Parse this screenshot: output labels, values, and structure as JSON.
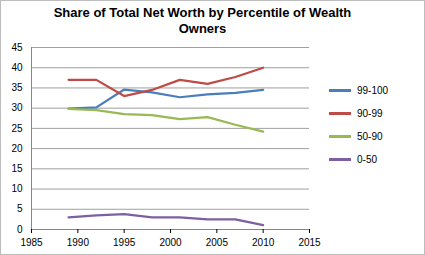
{
  "chart_data": {
    "type": "line",
    "title": "Share of Total Net Worth by Percentile of Wealth Owners",
    "x": [
      1989,
      1992,
      1995,
      1998,
      2001,
      2004,
      2007,
      2010
    ],
    "series": [
      {
        "name": "99-100",
        "color": "#4A7EBB",
        "values": [
          29.9,
          30.2,
          34.6,
          33.9,
          32.7,
          33.4,
          33.8,
          34.5
        ]
      },
      {
        "name": "90-99",
        "color": "#BE4B48",
        "values": [
          37.0,
          37.0,
          33.0,
          34.5,
          37.0,
          36.0,
          37.7,
          40.0
        ]
      },
      {
        "name": "50-90",
        "color": "#98B954",
        "values": [
          29.8,
          29.5,
          28.5,
          28.3,
          27.3,
          27.8,
          25.9,
          24.2
        ]
      },
      {
        "name": "0-50",
        "color": "#7D60A0",
        "values": [
          3.0,
          3.5,
          3.8,
          3.0,
          3.0,
          2.5,
          2.5,
          1.1
        ]
      }
    ],
    "xlim": [
      1985,
      2015
    ],
    "xticks": [
      1985,
      1990,
      1995,
      2000,
      2005,
      2010,
      2015
    ],
    "ylim": [
      0,
      45
    ],
    "yticks": [
      0,
      5,
      10,
      15,
      20,
      25,
      30,
      35,
      40,
      45
    ],
    "grid": true,
    "legend": "right"
  }
}
